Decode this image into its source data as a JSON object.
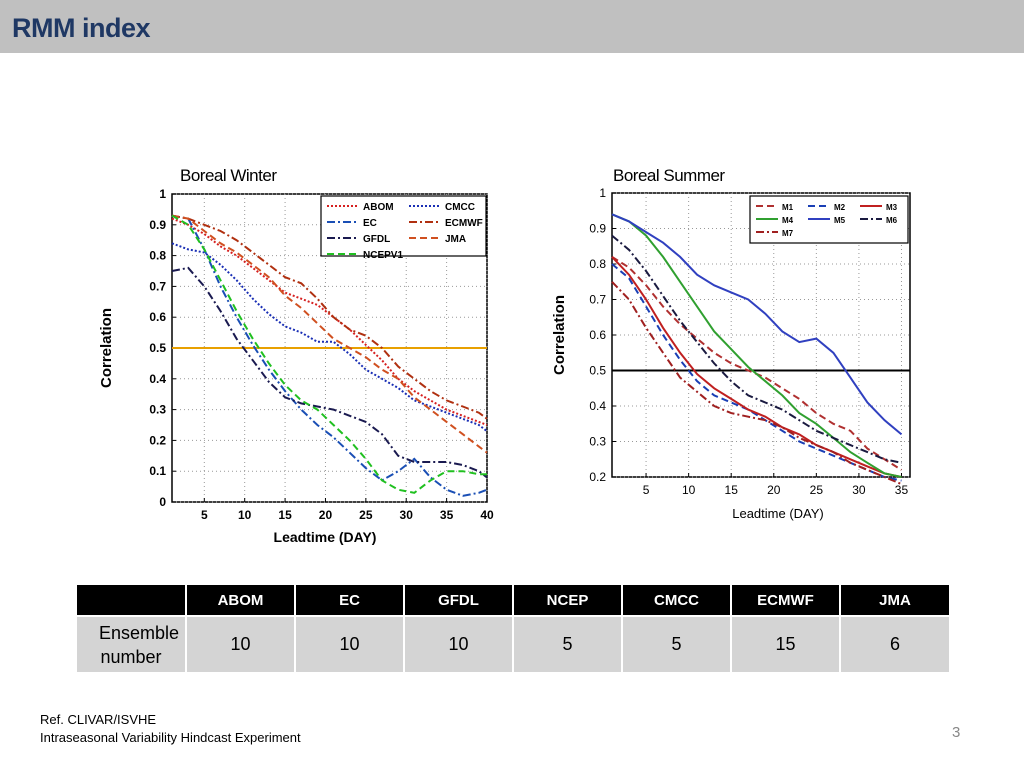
{
  "header": {
    "title": "RMM index"
  },
  "chart_data": [
    {
      "type": "line",
      "title": "Boreal Winter",
      "ylabel": "Correlation",
      "xlabel": "Leadtime (DAY)",
      "xlim": [
        1,
        40
      ],
      "ylim": [
        0,
        1
      ],
      "xticks": [
        5,
        10,
        15,
        20,
        25,
        30,
        35,
        40
      ],
      "yticks": [
        0,
        0.1,
        0.2,
        0.3,
        0.4,
        0.5,
        0.6,
        0.7,
        0.8,
        0.9,
        1
      ],
      "grid": true,
      "legend_position": "top-right",
      "reference_line": {
        "y": 0.5,
        "color": "#e8a000"
      },
      "series": [
        {
          "name": "ABOM",
          "color": "#d62020",
          "dash": "dot",
          "x": [
            1,
            3,
            5,
            7,
            9,
            11,
            13,
            15,
            17,
            19,
            21,
            23,
            25,
            27,
            29,
            31,
            33,
            35,
            37,
            39,
            40
          ],
          "y": [
            0.92,
            0.9,
            0.87,
            0.83,
            0.8,
            0.76,
            0.72,
            0.68,
            0.66,
            0.64,
            0.6,
            0.56,
            0.51,
            0.46,
            0.4,
            0.36,
            0.33,
            0.3,
            0.28,
            0.26,
            0.25
          ]
        },
        {
          "name": "CMCC",
          "color": "#1a2fb5",
          "dash": "dot",
          "x": [
            1,
            3,
            5,
            7,
            9,
            11,
            13,
            15,
            17,
            19,
            21,
            23,
            25,
            27,
            29,
            31,
            33,
            35,
            37,
            39,
            40
          ],
          "y": [
            0.84,
            0.82,
            0.81,
            0.77,
            0.72,
            0.66,
            0.61,
            0.57,
            0.55,
            0.52,
            0.52,
            0.48,
            0.43,
            0.4,
            0.37,
            0.33,
            0.31,
            0.29,
            0.27,
            0.25,
            0.23
          ]
        },
        {
          "name": "EC",
          "color": "#1a4fb5",
          "dash": "dashdot",
          "x": [
            1,
            3,
            5,
            7,
            9,
            11,
            13,
            15,
            17,
            19,
            21,
            23,
            25,
            27,
            29,
            31,
            33,
            35,
            37,
            39,
            40
          ],
          "y": [
            0.93,
            0.92,
            0.82,
            0.7,
            0.6,
            0.51,
            0.43,
            0.36,
            0.3,
            0.25,
            0.21,
            0.16,
            0.11,
            0.07,
            0.1,
            0.14,
            0.08,
            0.04,
            0.02,
            0.03,
            0.04
          ]
        },
        {
          "name": "ECMWF",
          "color": "#b03010",
          "dash": "dashdot",
          "x": [
            1,
            3,
            5,
            7,
            9,
            11,
            13,
            15,
            17,
            19,
            21,
            23,
            25,
            27,
            29,
            31,
            33,
            35,
            37,
            39,
            40
          ],
          "y": [
            0.93,
            0.92,
            0.9,
            0.88,
            0.85,
            0.81,
            0.77,
            0.73,
            0.71,
            0.66,
            0.6,
            0.56,
            0.54,
            0.5,
            0.44,
            0.4,
            0.36,
            0.33,
            0.31,
            0.29,
            0.27
          ]
        },
        {
          "name": "GFDL",
          "color": "#1a1a50",
          "dash": "dashdot",
          "x": [
            1,
            3,
            5,
            7,
            9,
            11,
            13,
            15,
            17,
            19,
            21,
            23,
            25,
            27,
            29,
            31,
            33,
            35,
            37,
            39,
            40
          ],
          "y": [
            0.75,
            0.76,
            0.7,
            0.62,
            0.53,
            0.46,
            0.39,
            0.34,
            0.32,
            0.31,
            0.3,
            0.28,
            0.26,
            0.22,
            0.15,
            0.13,
            0.13,
            0.13,
            0.12,
            0.1,
            0.08
          ]
        },
        {
          "name": "JMA",
          "color": "#d05020",
          "dash": "dash",
          "x": [
            1,
            3,
            5,
            7,
            9,
            11,
            13,
            15,
            17,
            19,
            21,
            23,
            25,
            27,
            29,
            31,
            33,
            35,
            37,
            39,
            40
          ],
          "y": [
            0.93,
            0.92,
            0.88,
            0.84,
            0.81,
            0.77,
            0.73,
            0.67,
            0.63,
            0.58,
            0.53,
            0.5,
            0.47,
            0.43,
            0.4,
            0.34,
            0.3,
            0.26,
            0.22,
            0.18,
            0.16
          ]
        },
        {
          "name": "NCEPV1",
          "color": "#20c020",
          "dash": "dash",
          "x": [
            1,
            3,
            5,
            7,
            9,
            11,
            13,
            15,
            17,
            19,
            21,
            23,
            25,
            27,
            29,
            31,
            33,
            35,
            37,
            39,
            40
          ],
          "y": [
            0.93,
            0.9,
            0.82,
            0.72,
            0.62,
            0.53,
            0.45,
            0.38,
            0.33,
            0.3,
            0.25,
            0.2,
            0.14,
            0.07,
            0.04,
            0.03,
            0.07,
            0.1,
            0.1,
            0.09,
            0.09
          ]
        }
      ]
    },
    {
      "type": "line",
      "title": "Boreal Summer",
      "ylabel": "Correlation",
      "xlabel": "Leadtime (DAY)",
      "xlim": [
        1,
        36
      ],
      "ylim": [
        0.2,
        1
      ],
      "xticks": [
        5,
        10,
        15,
        20,
        25,
        30,
        35
      ],
      "yticks": [
        0.2,
        0.3,
        0.4,
        0.5,
        0.6,
        0.7,
        0.8,
        0.9,
        1
      ],
      "grid": true,
      "legend_position": "top-right",
      "reference_line": {
        "y": 0.5,
        "color": "#000000"
      },
      "series": [
        {
          "name": "M1",
          "color": "#b03030",
          "dash": "dash",
          "x": [
            1,
            3,
            5,
            7,
            9,
            11,
            13,
            15,
            17,
            19,
            21,
            23,
            25,
            27,
            29,
            31,
            33,
            35
          ],
          "y": [
            0.82,
            0.79,
            0.74,
            0.68,
            0.63,
            0.59,
            0.55,
            0.52,
            0.5,
            0.48,
            0.45,
            0.42,
            0.38,
            0.35,
            0.33,
            0.28,
            0.25,
            0.22
          ]
        },
        {
          "name": "M2",
          "color": "#1a3fb5",
          "dash": "dash",
          "x": [
            1,
            3,
            5,
            7,
            9,
            11,
            13,
            15,
            17,
            19,
            21,
            23,
            25,
            27,
            29,
            31,
            33,
            35
          ],
          "y": [
            0.8,
            0.76,
            0.68,
            0.6,
            0.53,
            0.47,
            0.43,
            0.41,
            0.39,
            0.36,
            0.33,
            0.3,
            0.28,
            0.26,
            0.24,
            0.22,
            0.2,
            0.19
          ]
        },
        {
          "name": "M3",
          "color": "#c02020",
          "dash": "solid",
          "x": [
            1,
            3,
            5,
            7,
            9,
            11,
            13,
            15,
            17,
            19,
            21,
            23,
            25,
            27,
            29,
            31,
            33,
            35
          ],
          "y": [
            0.82,
            0.77,
            0.7,
            0.62,
            0.55,
            0.49,
            0.45,
            0.42,
            0.39,
            0.37,
            0.34,
            0.32,
            0.29,
            0.27,
            0.25,
            0.23,
            0.21,
            0.2
          ]
        },
        {
          "name": "M4",
          "color": "#30a030",
          "dash": "solid",
          "x": [
            1,
            3,
            5,
            7,
            9,
            11,
            13,
            15,
            17,
            19,
            21,
            23,
            25,
            27,
            29,
            31,
            33,
            35
          ],
          "y": [
            0.94,
            0.92,
            0.88,
            0.82,
            0.75,
            0.68,
            0.61,
            0.56,
            0.51,
            0.47,
            0.43,
            0.38,
            0.35,
            0.31,
            0.27,
            0.24,
            0.21,
            0.2
          ]
        },
        {
          "name": "M5",
          "color": "#3040c0",
          "dash": "solid",
          "x": [
            1,
            3,
            5,
            7,
            9,
            11,
            13,
            15,
            17,
            19,
            21,
            23,
            25,
            27,
            29,
            31,
            33,
            35
          ],
          "y": [
            0.94,
            0.92,
            0.89,
            0.86,
            0.82,
            0.77,
            0.74,
            0.72,
            0.7,
            0.66,
            0.61,
            0.58,
            0.59,
            0.55,
            0.48,
            0.41,
            0.36,
            0.32
          ]
        },
        {
          "name": "M6",
          "color": "#1a1a40",
          "dash": "dashdot",
          "x": [
            1,
            3,
            5,
            7,
            9,
            11,
            13,
            15,
            17,
            19,
            21,
            23,
            25,
            27,
            29,
            31,
            33,
            35
          ],
          "y": [
            0.88,
            0.84,
            0.78,
            0.71,
            0.64,
            0.58,
            0.52,
            0.47,
            0.43,
            0.41,
            0.39,
            0.36,
            0.33,
            0.31,
            0.29,
            0.27,
            0.25,
            0.24
          ]
        },
        {
          "name": "M7",
          "color": "#a02020",
          "dash": "dashdot",
          "x": [
            1,
            3,
            5,
            7,
            9,
            11,
            13,
            15,
            17,
            19,
            21,
            23,
            25,
            27,
            29,
            31,
            33,
            35
          ],
          "y": [
            0.75,
            0.7,
            0.62,
            0.55,
            0.48,
            0.44,
            0.4,
            0.38,
            0.37,
            0.36,
            0.34,
            0.31,
            0.29,
            0.27,
            0.24,
            0.22,
            0.2,
            0.18
          ]
        }
      ]
    }
  ],
  "table": {
    "headers": [
      "",
      "ABOM",
      "EC",
      "GFDL",
      "NCEP",
      "CMCC",
      "ECMWF",
      "JMA"
    ],
    "row_label": "Ensemble number",
    "values": [
      "10",
      "10",
      "10",
      "5",
      "5",
      "15",
      "6"
    ]
  },
  "footer": {
    "ref_line1": "Ref. CLIVAR/ISVHE",
    "ref_line2": "Intraseasonal Variability Hindcast Experiment",
    "page_number": "3"
  }
}
